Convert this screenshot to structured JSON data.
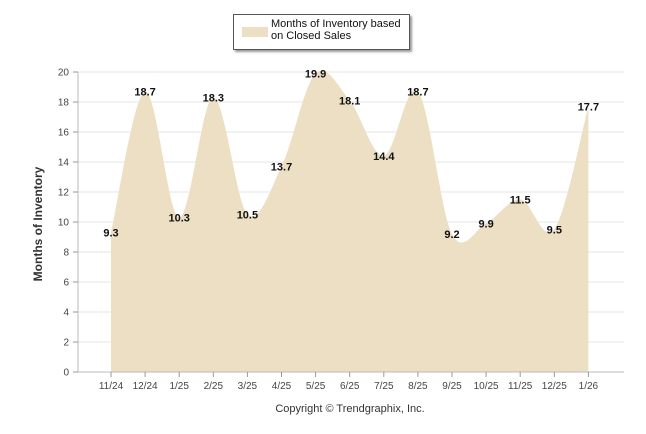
{
  "chart_data": {
    "type": "area",
    "title": "",
    "xlabel": "",
    "ylabel": "Months of Inventory",
    "ylim": [
      0,
      20
    ],
    "yticks": [
      0,
      2,
      4,
      6,
      8,
      10,
      12,
      14,
      16,
      18,
      20
    ],
    "categories": [
      "11/24",
      "12/24",
      "1/25",
      "2/25",
      "3/25",
      "4/25",
      "5/25",
      "6/25",
      "7/25",
      "8/25",
      "9/25",
      "10/25",
      "11/25",
      "12/25",
      "1/26"
    ],
    "series": [
      {
        "name": "Months of Inventory based on Closed Sales",
        "values": [
          9.3,
          18.7,
          10.3,
          18.3,
          10.5,
          13.7,
          19.9,
          18.1,
          14.4,
          18.7,
          9.2,
          9.9,
          11.5,
          9.5,
          17.7
        ],
        "color": "#ecdfc3"
      }
    ],
    "legend": {
      "position": "top-center",
      "label": "Months of Inventory based on Closed Sales",
      "lines": [
        "Months of Inventory based",
        "on Closed Sales"
      ]
    },
    "grid": true
  },
  "footer": {
    "copyright": "Copyright © Trendgraphix, Inc."
  }
}
